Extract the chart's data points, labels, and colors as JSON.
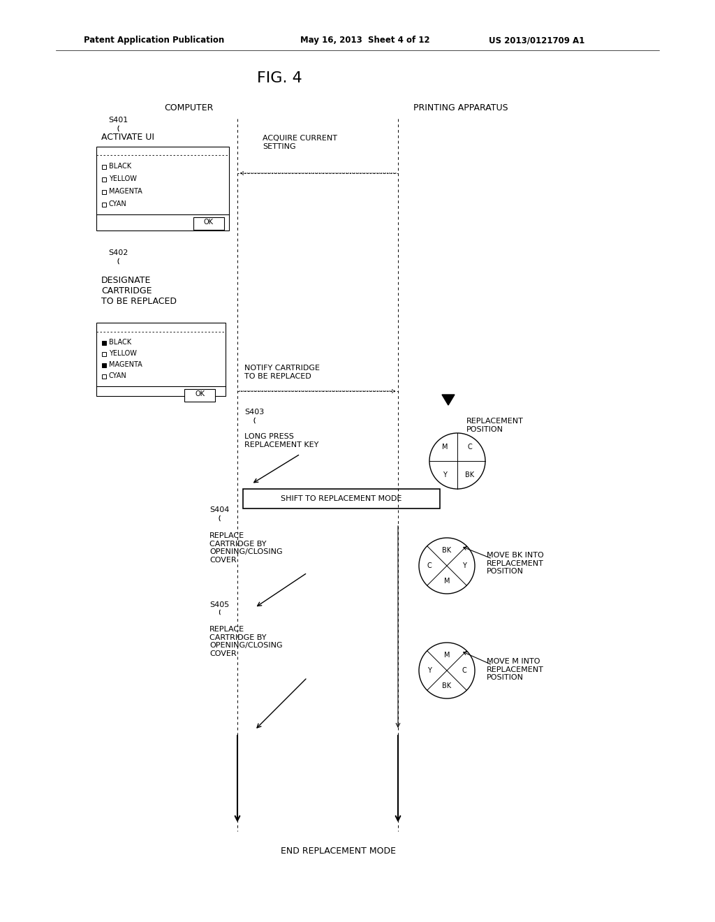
{
  "bg_color": "#ffffff",
  "header_left": "Patent Application Publication",
  "header_mid": "May 16, 2013  Sheet 4 of 12",
  "header_right": "US 2013/0121709 A1",
  "fig_title": "FIG. 4",
  "computer_label": "COMPUTER",
  "printing_label": "PRINTING APPARATUS",
  "s401_label": "S401",
  "s402_label": "S402",
  "s403_label": "S403",
  "s404_label": "S404",
  "s405_label": "S405",
  "activate_ui": "ACTIVATE UI",
  "acquire_current": "ACQUIRE CURRENT\nSETTING",
  "designate_cartridge": "DESIGNATE\nCARTRIDGE\nTO BE REPLACED",
  "notify_cartridge": "NOTIFY CARTRIDGE\nTO BE REPLACED",
  "long_press": "LONG PRESS\nREPLACEMENT KEY",
  "replacement_position": "REPLACEMENT\nPOSITION",
  "shift_mode": "SHIFT TO REPLACEMENT MODE",
  "replace_s404": "REPLACE\nCARTRIDGE BY\nOPENING/CLOSING\nCOVER",
  "move_bk": "MOVE BK INTO\nREPLACEMENT\nPOSITION",
  "replace_s405": "REPLACE\nCARTRIDGE BY\nOPENING/CLOSING\nCOVER",
  "move_m": "MOVE M INTO\nREPLACEMENT\nPOSITION",
  "end_replacement": "END REPLACEMENT MODE",
  "items": [
    "BLACK",
    "YELLOW",
    "MAGENTA",
    "CYAN"
  ],
  "items2_checked": [
    true,
    false,
    true,
    false
  ],
  "text_color": "#000000",
  "line_color": "#000000",
  "font_size_header": 8.5,
  "font_size_title": 16,
  "font_size_step": 8,
  "font_size_body": 8,
  "font_size_small": 7
}
